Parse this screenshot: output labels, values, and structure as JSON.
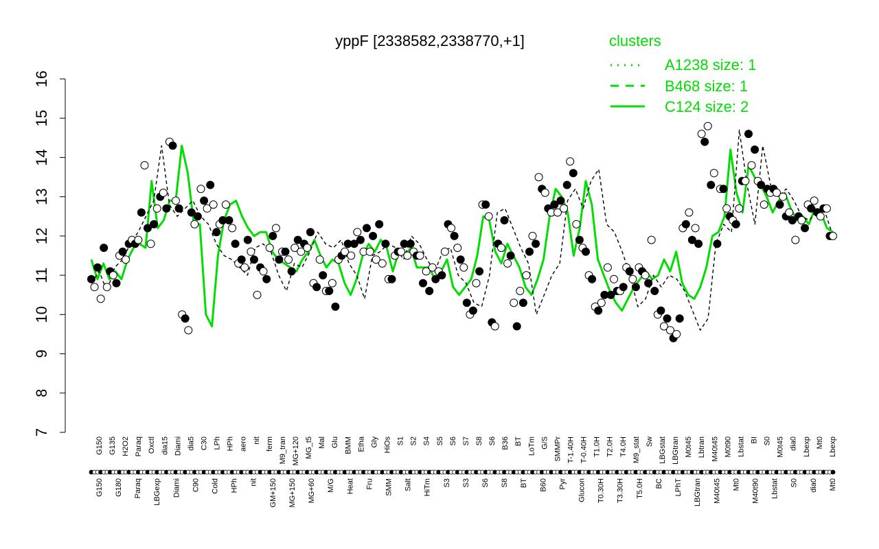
{
  "chart_data": {
    "type": "line",
    "title": "yppF [2338582,2338770,+1]",
    "xlabel": "",
    "ylabel": "",
    "ylim": [
      7,
      16
    ],
    "yticks": [
      7,
      8,
      9,
      10,
      11,
      12,
      13,
      14,
      15,
      16
    ],
    "legend": {
      "title": "clusters",
      "placement": "top-right",
      "entries": [
        {
          "label": "A1238 size: 1",
          "style": "dotted"
        },
        {
          "label": "B468 size: 1",
          "style": "dashed"
        },
        {
          "label": "C124 size: 2",
          "style": "solid"
        }
      ]
    },
    "upper_labels": [
      "G150",
      "G135",
      "H2O2",
      "Paraq",
      "Oxctl",
      "dia15",
      "Diami",
      "dia5",
      "C30",
      "LPh",
      "HPh",
      "aero",
      "nit",
      "ferm",
      "M9_tran",
      "MG+120",
      "MG_t5",
      "Mal",
      "Glu",
      "BMM",
      "Etha",
      "Gly",
      "HiOs",
      "S1",
      "S2",
      "S4",
      "S5",
      "S6",
      "S7",
      "S8",
      "S6",
      "B36",
      "BT",
      "LoTm",
      "G/S",
      "SMMPr",
      "T-1.40H",
      "T-0.40H",
      "T1.0H",
      "T2.0H",
      "T4.0H",
      "M9_stat",
      "Sw",
      "LBGstat",
      "LBGtran",
      "M0t45",
      "Lbtran",
      "M40t45",
      "M0t90",
      "Lbstat",
      "BI",
      "S0",
      "M0t45",
      "dia0",
      "Lbexp",
      "Mt0",
      "Lbexp"
    ],
    "lower_labels": [
      "G150",
      "G180",
      "Paraq",
      "LBGexp",
      "Diami",
      "C90",
      "Cold",
      "HPh",
      "nit",
      "GM+150",
      "MG+150",
      "MG+60",
      "M/G",
      "Heat",
      "Fru",
      "SMM",
      "Salt",
      "HiTm",
      "S3",
      "S3",
      "S6",
      "S8",
      "BT",
      "B60",
      "Pyr",
      "Glucon",
      "T0.30H",
      "T3.30H",
      "T5.0H",
      "BC",
      "LPhT",
      "LBGtran",
      "M40t45",
      "Mt0",
      "M40t90",
      "Lbstat",
      "S0",
      "dia0",
      "Mt0"
    ],
    "series": [
      {
        "label": "",
        "color": "#00dd00",
        "style": "solid",
        "values": [
          11.4,
          10.9,
          11.3,
          10.9,
          11.1,
          10.9,
          11.4,
          11.7,
          11.8,
          11.7,
          13.4,
          12.2,
          12.4,
          12.9,
          12.9,
          14.3,
          13.6,
          12.3,
          12.3,
          10.0,
          9.7,
          11.5,
          12.4,
          12.8,
          12.9,
          12.5,
          12.2,
          12.0,
          12.1,
          12.1,
          11.6,
          11.4,
          11.3,
          11.2,
          11.1,
          11.4,
          11.6,
          11.9,
          11.5,
          11.2,
          11.4,
          11.3,
          10.8,
          10.5,
          10.9,
          11.5,
          11.8,
          11.6,
          11.9,
          11.7,
          11.1,
          11.6,
          11.5,
          11.7,
          11.2,
          11.2,
          11.2,
          10.9,
          11.1,
          11.4,
          10.7,
          10.5,
          10.7,
          10.9,
          11.5,
          12.5,
          12.4,
          11.6,
          11.3,
          11.8,
          11.5,
          11.2,
          10.7,
          10.5,
          10.9,
          11.4,
          12.5,
          13.2,
          13.0,
          12.6,
          11.5,
          12.2,
          13.4,
          12.8,
          11.4,
          11.0,
          10.6,
          10.3,
          10.1,
          10.4,
          10.7,
          10.9,
          11.1,
          10.9,
          11.0,
          11.4,
          11.1,
          11.6,
          10.8,
          10.5,
          10.4,
          10.7,
          11.2,
          12.0,
          12.1,
          12.5,
          14.2,
          13.1,
          12.6,
          13.8,
          13.5,
          13.3,
          13.0,
          12.6,
          12.9,
          13.1,
          12.7,
          12.4,
          12.5,
          12.3,
          12.7,
          12.6,
          12.2,
          12.1
        ]
      },
      {
        "label": "",
        "color": "#000000",
        "style": "dashed",
        "values": [
          10.8,
          11.1,
          10.6,
          11.2,
          11.4,
          11.8,
          12.1,
          12.5,
          12.9,
          14.3,
          12.8,
          12.5,
          12.7,
          12.9,
          12.5,
          12.3,
          11.8,
          11.5,
          11.4,
          11.2,
          11.0,
          11.7,
          11.8,
          11.6,
          11.0,
          10.6,
          11.3,
          11.2,
          11.6,
          12.1,
          11.8,
          11.7,
          11.9,
          11.3,
          11.0,
          10.4,
          11.5,
          11.6,
          11.8,
          11.7,
          11.4,
          12.0,
          11.8,
          11.4,
          11.1,
          11.6,
          11.7,
          11.0,
          10.8,
          10.3,
          10.2,
          11.0,
          12.6,
          12.7,
          12.2,
          11.7,
          11.3,
          10.0,
          10.5,
          11.0,
          11.3,
          12.9,
          13.2,
          12.7,
          13.4,
          13.7,
          12.3,
          12.1,
          11.6,
          11.0,
          10.2,
          10.4,
          11.0,
          10.7,
          11.0,
          10.9,
          10.6,
          10.1,
          9.6,
          9.9,
          11.8,
          12.3,
          12.1,
          14.7,
          13.3,
          12.3,
          14.3,
          13.3,
          13.0,
          13.2,
          12.9,
          12.5,
          12.4,
          12.7,
          12.6,
          12.0
        ]
      }
    ],
    "points": [
      10.9,
      10.7,
      11.2,
      10.4,
      11.7,
      10.7,
      11.1,
      11.0,
      10.8,
      11.5,
      11.6,
      11.4,
      11.8,
      11.9,
      11.8,
      11.9,
      12.6,
      13.8,
      12.2,
      11.8,
      12.3,
      12.7,
      13.0,
      13.1,
      12.7,
      14.4,
      14.3,
      12.9,
      12.7,
      10.0,
      9.9,
      9.6,
      12.6,
      12.3,
      12.5,
      13.2,
      12.9,
      12.7,
      13.3,
      12.8,
      12.1,
      12.3,
      12.4,
      12.8,
      12.4,
      12.2,
      11.8,
      11.3,
      11.4,
      11.2,
      11.9,
      11.6,
      11.4,
      10.5,
      11.2,
      11.1,
      10.9,
      11.7,
      12.0,
      12.2,
      11.4,
      11.6,
      11.6,
      11.4,
      11.1,
      11.7,
      11.9,
      11.6,
      11.8,
      11.7,
      12.1,
      10.8,
      10.7,
      11.4,
      11.0,
      10.6,
      10.6,
      10.8,
      10.2,
      11.4,
      11.5,
      11.6,
      11.8,
      11.5,
      11.8,
      12.1,
      11.9,
      11.6,
      12.2,
      11.6,
      12.0,
      11.4,
      12.3,
      11.3,
      11.8,
      10.9,
      10.9,
      11.5,
      11.6,
      11.6,
      11.8,
      11.5,
      11.8,
      11.6,
      11.5,
      11.5,
      10.8,
      11.1,
      10.6,
      11.2,
      10.9,
      11.1,
      11.0,
      11.6,
      12.3,
      12.2,
      12.0,
      11.7,
      11.4,
      11.2,
      10.3,
      10.0,
      10.1,
      10.8,
      11.1,
      12.8,
      12.8,
      12.5,
      9.8,
      9.7,
      11.8,
      11.7,
      12.4,
      11.3,
      11.5,
      10.3,
      9.7,
      10.6,
      10.3,
      11.0,
      11.6,
      12.0,
      11.8,
      13.5,
      13.2,
      13.1,
      12.7,
      12.6,
      12.8,
      12.6,
      12.9,
      12.7,
      13.3,
      13.9,
      13.6,
      12.3,
      11.9,
      11.7,
      11.6,
      11.0,
      10.9,
      10.2,
      10.1,
      10.3,
      10.5,
      11.2,
      10.5,
      10.9,
      10.6,
      10.6,
      10.7,
      11.2,
      11.1,
      10.9,
      10.7,
      11.2,
      11.1,
      11.0,
      10.8,
      11.9,
      10.6,
      10.0,
      10.1,
      9.7,
      9.9,
      9.6,
      9.4,
      9.5,
      9.9,
      12.2,
      12.3,
      12.6,
      11.9,
      12.2,
      11.8,
      14.6,
      14.4,
      14.8,
      13.3,
      13.6,
      11.8,
      13.2,
      13.2,
      12.7,
      12.5,
      12.4,
      12.3,
      12.7,
      13.4,
      13.4,
      14.6,
      13.8,
      14.2,
      13.4,
      13.3,
      12.8,
      13.2,
      13.1,
      13.2,
      13.1,
      12.8,
      13.0,
      12.5,
      12.6,
      12.4,
      11.9,
      12.5,
      12.4,
      12.2,
      12.8,
      12.7,
      12.9,
      12.6,
      12.5,
      12.7,
      12.7,
      12.0,
      12.0
    ],
    "point_fill": [
      "#000000",
      "#ffffff"
    ]
  }
}
